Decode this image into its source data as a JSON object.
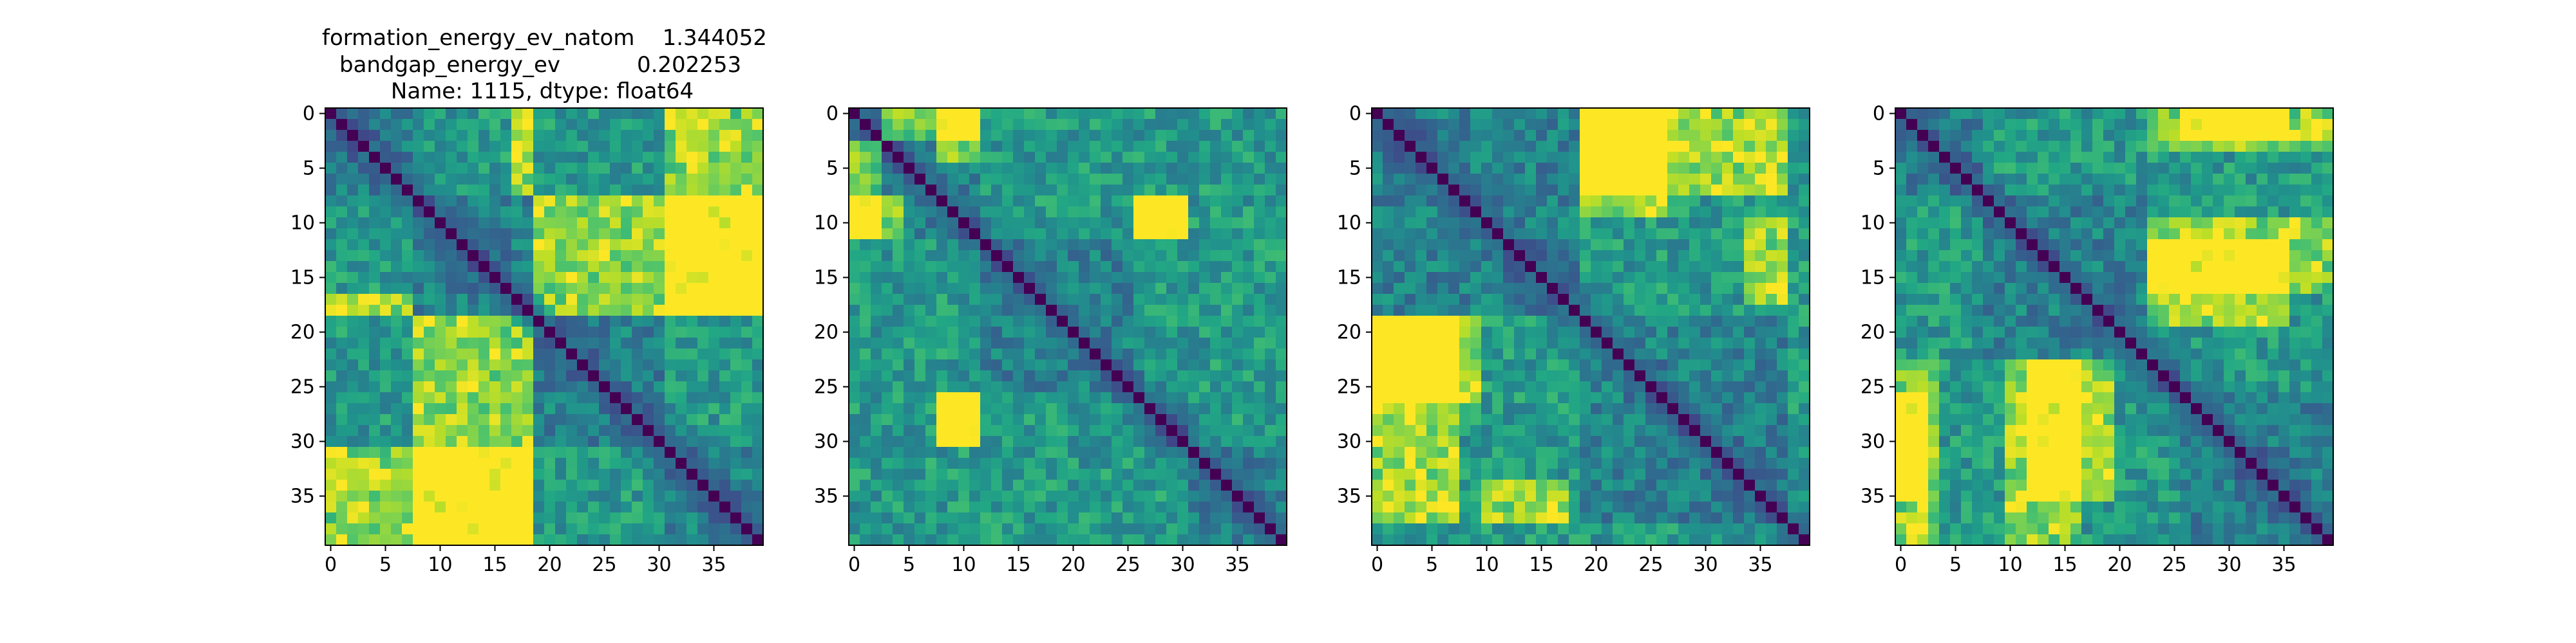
{
  "figure": {
    "title_lines": [
      "formation_energy_ev_natom    1.344052",
      "bandgap_energy_ev           0.202253",
      "Name: 1115, dtype: float64"
    ]
  },
  "colors": {
    "colormap": "viridis",
    "low": "#440154",
    "high": "#fde725",
    "axes_frame": "#000000"
  },
  "chart_data": [
    {
      "type": "heatmap",
      "title": "",
      "xlabel": "",
      "ylabel": "",
      "size": 40,
      "x_ticks": [
        0,
        5,
        10,
        15,
        20,
        25,
        30,
        35
      ],
      "y_ticks": [
        0,
        5,
        10,
        15,
        20,
        25,
        30,
        35
      ],
      "colormap": "viridis",
      "value_range": [
        0,
        1
      ],
      "diagonal": 0,
      "block_boundaries": [
        8,
        19,
        31
      ],
      "high_blocks": [
        [
          0,
          19,
          31,
          40
        ],
        [
          8,
          19,
          31,
          40
        ],
        [
          19,
          31,
          8,
          19
        ],
        [
          0,
          8,
          17,
          19
        ]
      ]
    },
    {
      "type": "heatmap",
      "title": "",
      "xlabel": "",
      "ylabel": "",
      "size": 40,
      "x_ticks": [
        0,
        5,
        10,
        15,
        20,
        25,
        30,
        35
      ],
      "y_ticks": [
        0,
        5,
        10,
        15,
        20,
        25,
        30,
        35
      ],
      "colormap": "viridis",
      "value_range": [
        0,
        1
      ],
      "diagonal": 0,
      "block_boundaries": [
        3,
        12,
        26,
        31
      ],
      "high_blocks": [
        [
          0,
          3,
          3,
          12
        ],
        [
          8,
          12,
          0,
          5
        ],
        [
          8,
          12,
          26,
          31
        ],
        [
          26,
          31,
          8,
          12
        ]
      ]
    },
    {
      "type": "heatmap",
      "title": "",
      "xlabel": "",
      "ylabel": "",
      "size": 40,
      "x_ticks": [
        0,
        5,
        10,
        15,
        20,
        25,
        30,
        35
      ],
      "y_ticks": [
        0,
        5,
        10,
        15,
        20,
        25,
        30,
        35
      ],
      "colormap": "viridis",
      "value_range": [
        0,
        1
      ],
      "diagonal": 0,
      "block_boundaries": [
        19,
        38
      ],
      "high_blocks": [
        [
          0,
          10,
          19,
          27
        ],
        [
          19,
          38,
          0,
          8
        ],
        [
          10,
          18,
          34,
          38
        ]
      ]
    },
    {
      "type": "heatmap",
      "title": "",
      "xlabel": "",
      "ylabel": "",
      "size": 40,
      "x_ticks": [
        0,
        5,
        10,
        15,
        20,
        25,
        30,
        35
      ],
      "y_ticks": [
        0,
        5,
        10,
        15,
        20,
        25,
        30,
        35
      ],
      "colormap": "viridis",
      "value_range": [
        0,
        1
      ],
      "diagonal": 0,
      "block_boundaries": [
        8,
        23,
        26
      ],
      "high_blocks": [
        [
          0,
          3,
          26,
          36
        ],
        [
          23,
          40,
          10,
          17
        ],
        [
          12,
          20,
          23,
          36
        ],
        [
          23,
          40,
          0,
          4
        ]
      ]
    }
  ]
}
